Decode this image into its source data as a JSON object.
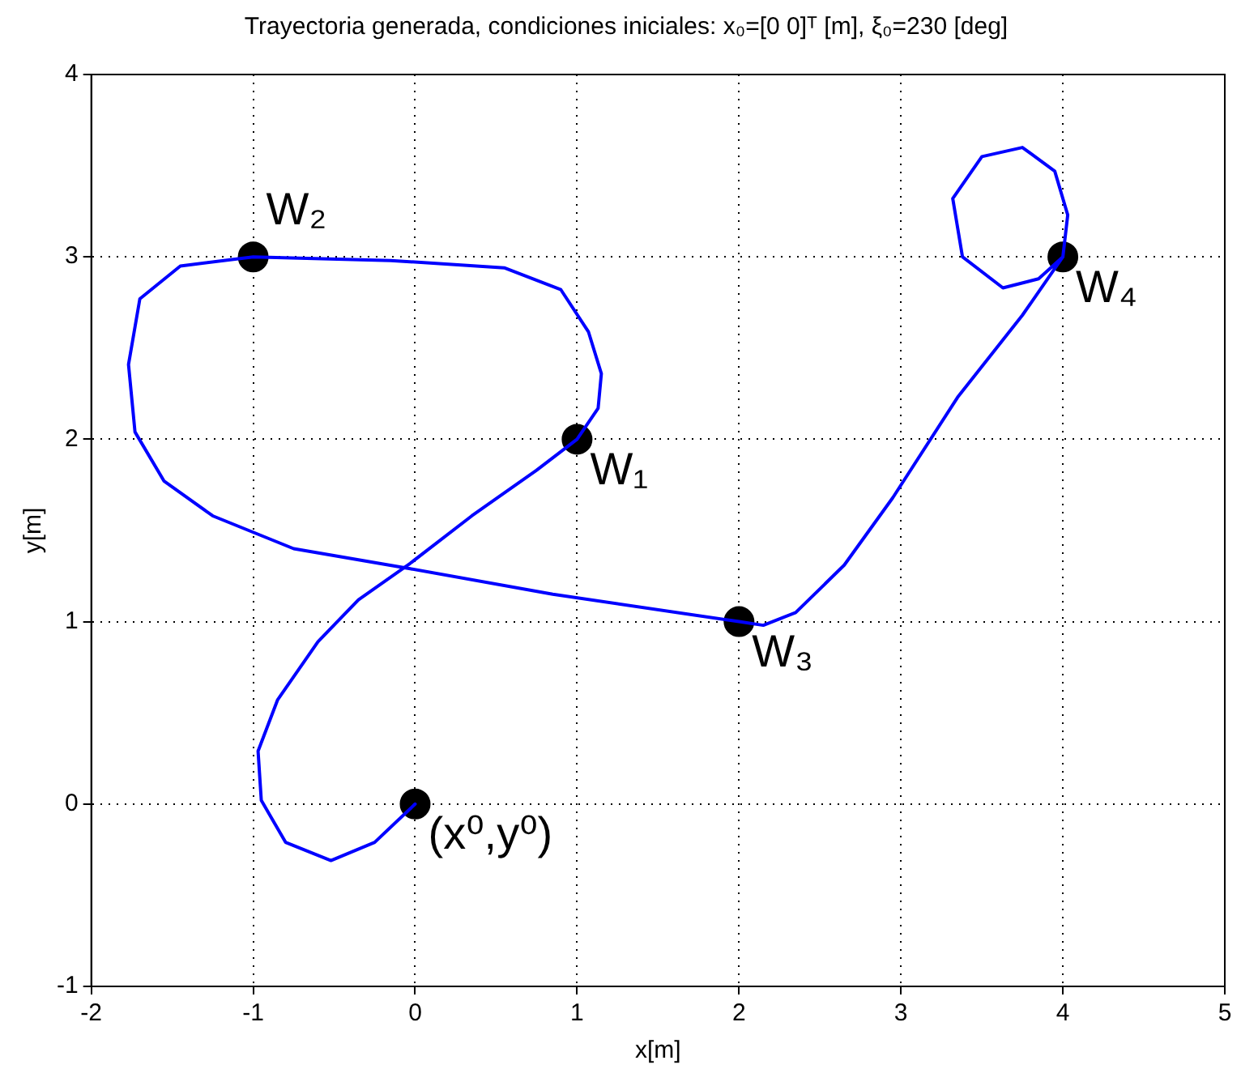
{
  "chart_data": {
    "type": "line",
    "title": "Trayectoria generada, condiciones iniciales: x₀=[0 0]ᵀ [m], ξ₀=230 [deg]",
    "xlabel": "x[m]",
    "ylabel": "y[m]",
    "xlim": [
      -2,
      5
    ],
    "xticks": [
      -2,
      -1,
      0,
      1,
      2,
      3,
      4,
      5
    ],
    "ylim": [
      -1,
      4
    ],
    "yticks": [
      -1,
      0,
      1,
      2,
      3,
      4
    ],
    "grid": true,
    "legend": false,
    "series": [
      {
        "color": "#0000ff",
        "marker": "none",
        "line_style": "solid",
        "x": [
          0,
          -0.25,
          -0.52,
          -0.8,
          -0.95,
          -0.97,
          -0.85,
          -0.6,
          -0.35,
          -0.03,
          0.35,
          0.75,
          1,
          1.13,
          1.15,
          1.07,
          0.9,
          0.55,
          -0.15,
          -1,
          -1.45,
          -1.7,
          -1.77,
          -1.73,
          -1.55,
          -1.25,
          -0.75,
          -0.03,
          0.85,
          2,
          2.15,
          2.35,
          2.65,
          2.95,
          3.35,
          3.75,
          4,
          4.03,
          3.95,
          3.75,
          3.5,
          3.32,
          3.38,
          3.63,
          3.85,
          4
        ],
        "values": [
          0,
          -0.21,
          -0.31,
          -0.21,
          0.02,
          0.29,
          0.57,
          0.89,
          1.12,
          1.32,
          1.58,
          1.83,
          2,
          2.17,
          2.36,
          2.59,
          2.82,
          2.94,
          2.98,
          3,
          2.95,
          2.77,
          2.41,
          2.04,
          1.77,
          1.58,
          1.4,
          1.29,
          1.15,
          1,
          0.98,
          1.05,
          1.31,
          1.68,
          2.23,
          2.68,
          3,
          3.23,
          3.47,
          3.6,
          3.55,
          3.32,
          3,
          2.83,
          2.88,
          3
        ]
      },
      {
        "type": "scatter",
        "color": "#000000",
        "marker": "circle",
        "x": [
          0,
          1,
          -1,
          2,
          4
        ],
        "values": [
          0,
          2,
          3,
          1,
          3
        ]
      }
    ],
    "annotations": [
      {
        "text": "(x⁰,y⁰)",
        "x": 0,
        "y": 0
      },
      {
        "text": "W₁",
        "x": 1,
        "y": 2
      },
      {
        "text": "W₂",
        "x": -1,
        "y": 3
      },
      {
        "text": "W₃",
        "x": 2,
        "y": 1
      },
      {
        "text": "W₄",
        "x": 4,
        "y": 3
      }
    ]
  }
}
